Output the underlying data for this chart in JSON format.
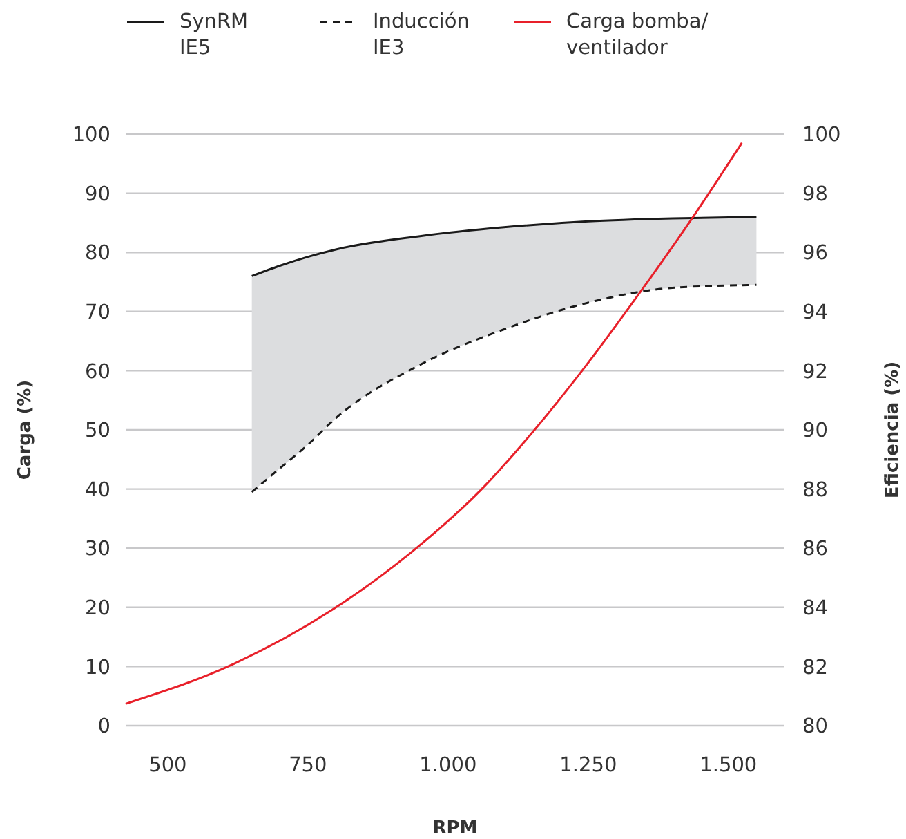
{
  "chart_data": {
    "type": "line",
    "xlabel": "RPM",
    "ylabel": "Carga (%)",
    "y2label": "Eficiencia (%)",
    "xlim": [
      425,
      1600
    ],
    "xticks": [
      500,
      750,
      {
        "value": 1000,
        "label": "1.000"
      },
      {
        "value": 1250,
        "label": "1.250"
      },
      {
        "value": 1500,
        "label": "1.500"
      }
    ],
    "ylim": [
      0,
      100
    ],
    "yticks": [
      0,
      10,
      20,
      30,
      40,
      50,
      60,
      70,
      80,
      90,
      100
    ],
    "y2lim": [
      80,
      100
    ],
    "y2ticks": [
      80,
      82,
      84,
      86,
      88,
      90,
      92,
      94,
      96,
      98,
      100
    ],
    "grid": "y",
    "legend": "top left",
    "marker": "none",
    "series": [
      {
        "name": "SynRM IE5",
        "color": "#1a1a1a",
        "axis": "y2",
        "line_style": "solid",
        "x": [
          650,
          700,
          750,
          800,
          950,
          1100,
          1250,
          1400,
          1550
        ],
        "values": [
          95.2,
          95.55,
          95.85,
          96.1,
          96.55,
          96.85,
          97.05,
          97.15,
          97.2
        ],
        "lower": [
          87.9,
          88.7,
          89.5,
          90.4,
          92.2,
          93.4,
          94.3,
          94.8,
          94.9
        ],
        "upper": [
          95.2,
          95.55,
          95.85,
          96.1,
          96.55,
          96.85,
          97.05,
          97.15,
          97.2
        ]
      },
      {
        "name": "Inducción IE3",
        "color": "#1a1a1a",
        "axis": "y2",
        "line_style": "dashed",
        "x": [
          650,
          700,
          750,
          800,
          950,
          1100,
          1250,
          1400,
          1550
        ],
        "values": [
          87.9,
          88.7,
          89.5,
          90.4,
          92.2,
          93.4,
          94.3,
          94.8,
          94.9
        ]
      },
      {
        "name": "Carga bomba/ventilador",
        "color": "#e8202a",
        "line_style": "solid",
        "x": [
          425,
          619,
          792,
          933,
          1057,
          1156,
          1239,
          1342,
          1437,
          1524
        ],
        "values": [
          3.7,
          10.5,
          19.5,
          29.2,
          39.7,
          50.2,
          60.0,
          73.2,
          86.0,
          98.5
        ]
      }
    ]
  }
}
